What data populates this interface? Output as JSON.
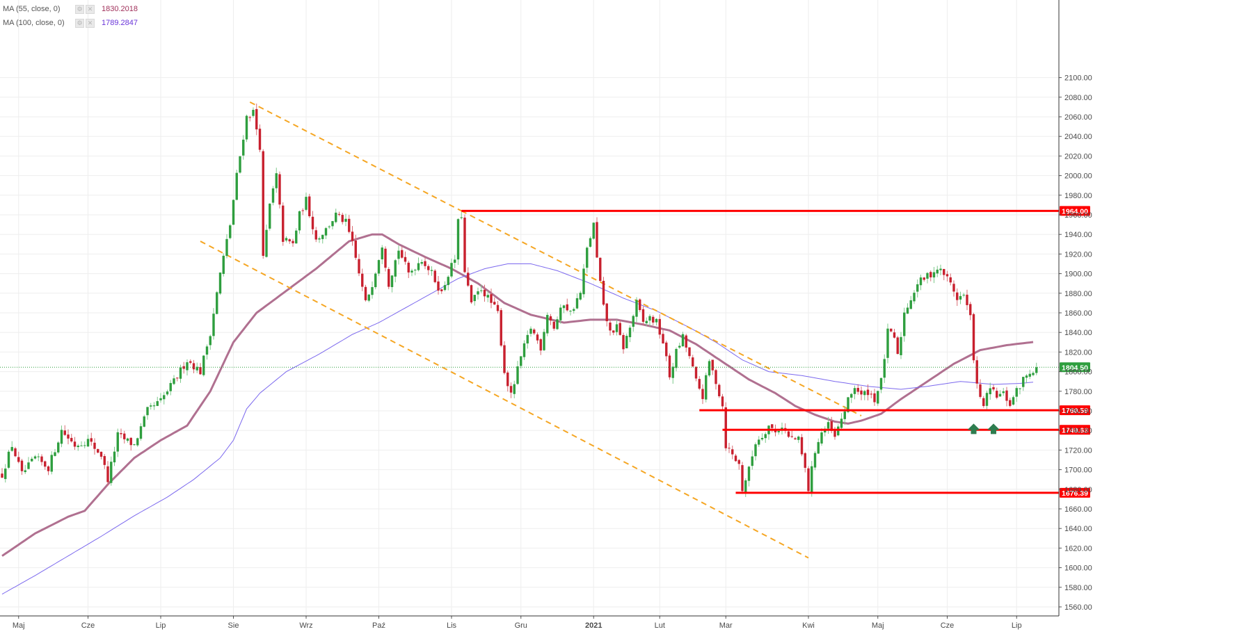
{
  "legend": [
    {
      "name": "MA (55, close, 0)",
      "value": "1830.2018",
      "color": "#b07090"
    },
    {
      "name": "MA (100, close, 0)",
      "value": "1789.2847",
      "color": "#7b68ee"
    }
  ],
  "colors": {
    "up_candle": "#2e9e3e",
    "down_candle": "#c8202e",
    "level_line": "#ff0000",
    "trend_line": "#f5a623",
    "ma55": "#b07090",
    "ma100": "#7b68ee",
    "last_price": "#2e9e3e",
    "arrow": "#2e7d4f",
    "grid": "#eeeeee"
  },
  "chart_data": {
    "type": "candlestick",
    "instrument_timeframe": "daily",
    "ylim": [
      1545,
      2090
    ],
    "y_ticks": [
      1560,
      1580,
      1600,
      1620,
      1640,
      1660,
      1680,
      1700,
      1720,
      1740,
      1760,
      1780,
      1800,
      1820,
      1840,
      1860,
      1880,
      1900,
      1920,
      1940,
      1960,
      1980,
      2000,
      2020,
      2040,
      2060,
      2080,
      2100
    ],
    "x_tick_labels": [
      {
        "label": "Maj",
        "bar": 5
      },
      {
        "label": "Cze",
        "bar": 26
      },
      {
        "label": "Lip",
        "bar": 48
      },
      {
        "label": "Sie",
        "bar": 70
      },
      {
        "label": "Wrz",
        "bar": 92
      },
      {
        "label": "Paź",
        "bar": 114
      },
      {
        "label": "Lis",
        "bar": 136
      },
      {
        "label": "Gru",
        "bar": 157
      },
      {
        "label": "2021",
        "bar": 179,
        "bold": true
      },
      {
        "label": "Lut",
        "bar": 199
      },
      {
        "label": "Mar",
        "bar": 219
      },
      {
        "label": "Kwi",
        "bar": 244
      },
      {
        "label": "Maj",
        "bar": 265
      },
      {
        "label": "Cze",
        "bar": 286
      },
      {
        "label": "Lip",
        "bar": 307
      }
    ],
    "price_keypoints": [
      [
        0,
        1695
      ],
      [
        3,
        1725
      ],
      [
        6,
        1695
      ],
      [
        10,
        1712
      ],
      [
        14,
        1702
      ],
      [
        18,
        1740
      ],
      [
        22,
        1725
      ],
      [
        26,
        1730
      ],
      [
        30,
        1715
      ],
      [
        32,
        1690
      ],
      [
        35,
        1735
      ],
      [
        40,
        1725
      ],
      [
        44,
        1760
      ],
      [
        48,
        1770
      ],
      [
        52,
        1790
      ],
      [
        56,
        1812
      ],
      [
        60,
        1800
      ],
      [
        63,
        1840
      ],
      [
        66,
        1900
      ],
      [
        69,
        1950
      ],
      [
        71,
        2000
      ],
      [
        74,
        2060
      ],
      [
        76,
        2065
      ],
      [
        78,
        2030
      ],
      [
        79,
        1915
      ],
      [
        81,
        1970
      ],
      [
        83,
        2000
      ],
      [
        85,
        1935
      ],
      [
        88,
        1930
      ],
      [
        90,
        1960
      ],
      [
        92,
        1975
      ],
      [
        95,
        1935
      ],
      [
        98,
        1945
      ],
      [
        101,
        1960
      ],
      [
        104,
        1952
      ],
      [
        106,
        1930
      ],
      [
        108,
        1900
      ],
      [
        110,
        1870
      ],
      [
        112,
        1890
      ],
      [
        115,
        1930
      ],
      [
        117,
        1890
      ],
      [
        120,
        1925
      ],
      [
        123,
        1900
      ],
      [
        127,
        1915
      ],
      [
        130,
        1900
      ],
      [
        133,
        1880
      ],
      [
        135,
        1900
      ],
      [
        137,
        1915
      ],
      [
        138,
        1952
      ],
      [
        139,
        1960
      ],
      [
        140,
        1900
      ],
      [
        142,
        1870
      ],
      [
        145,
        1885
      ],
      [
        148,
        1870
      ],
      [
        150,
        1860
      ],
      [
        152,
        1800
      ],
      [
        154,
        1775
      ],
      [
        157,
        1815
      ],
      [
        160,
        1845
      ],
      [
        163,
        1825
      ],
      [
        165,
        1860
      ],
      [
        167,
        1845
      ],
      [
        170,
        1870
      ],
      [
        172,
        1860
      ],
      [
        175,
        1880
      ],
      [
        177,
        1925
      ],
      [
        179,
        1950
      ],
      [
        180,
        1915
      ],
      [
        182,
        1865
      ],
      [
        184,
        1840
      ],
      [
        186,
        1845
      ],
      [
        188,
        1825
      ],
      [
        190,
        1845
      ],
      [
        192,
        1870
      ],
      [
        194,
        1850
      ],
      [
        196,
        1855
      ],
      [
        198,
        1850
      ],
      [
        200,
        1830
      ],
      [
        202,
        1795
      ],
      [
        204,
        1820
      ],
      [
        206,
        1835
      ],
      [
        208,
        1815
      ],
      [
        210,
        1790
      ],
      [
        212,
        1775
      ],
      [
        214,
        1810
      ],
      [
        216,
        1790
      ],
      [
        218,
        1765
      ],
      [
        219,
        1725
      ],
      [
        221,
        1715
      ],
      [
        223,
        1705
      ],
      [
        224,
        1680
      ],
      [
        226,
        1700
      ],
      [
        228,
        1728
      ],
      [
        230,
        1735
      ],
      [
        232,
        1745
      ],
      [
        234,
        1738
      ],
      [
        236,
        1745
      ],
      [
        238,
        1733
      ],
      [
        241,
        1730
      ],
      [
        243,
        1700
      ],
      [
        244,
        1680
      ],
      [
        246,
        1720
      ],
      [
        248,
        1738
      ],
      [
        250,
        1745
      ],
      [
        252,
        1732
      ],
      [
        254,
        1752
      ],
      [
        256,
        1770
      ],
      [
        258,
        1785
      ],
      [
        260,
        1775
      ],
      [
        262,
        1780
      ],
      [
        264,
        1772
      ],
      [
        266,
        1790
      ],
      [
        268,
        1840
      ],
      [
        270,
        1835
      ],
      [
        271,
        1815
      ],
      [
        273,
        1860
      ],
      [
        275,
        1875
      ],
      [
        277,
        1890
      ],
      [
        279,
        1895
      ],
      [
        281,
        1900
      ],
      [
        283,
        1905
      ],
      [
        285,
        1900
      ],
      [
        287,
        1890
      ],
      [
        289,
        1875
      ],
      [
        291,
        1878
      ],
      [
        293,
        1855
      ],
      [
        294,
        1815
      ],
      [
        295,
        1785
      ],
      [
        296,
        1772
      ],
      [
        297,
        1767
      ],
      [
        299,
        1782
      ],
      [
        301,
        1775
      ],
      [
        303,
        1777
      ],
      [
        305,
        1767
      ],
      [
        307,
        1780
      ],
      [
        309,
        1792
      ],
      [
        311,
        1800
      ],
      [
        313,
        1804.5
      ]
    ],
    "ma55_keypoints": [
      [
        0,
        1612
      ],
      [
        10,
        1635
      ],
      [
        20,
        1652
      ],
      [
        25,
        1658
      ],
      [
        32,
        1685
      ],
      [
        40,
        1712
      ],
      [
        48,
        1730
      ],
      [
        56,
        1745
      ],
      [
        63,
        1780
      ],
      [
        70,
        1830
      ],
      [
        77,
        1860
      ],
      [
        85,
        1880
      ],
      [
        95,
        1905
      ],
      [
        105,
        1933
      ],
      [
        112,
        1940
      ],
      [
        115,
        1940
      ],
      [
        120,
        1930
      ],
      [
        128,
        1917
      ],
      [
        136,
        1905
      ],
      [
        144,
        1890
      ],
      [
        152,
        1870
      ],
      [
        160,
        1858
      ],
      [
        170,
        1850
      ],
      [
        178,
        1853
      ],
      [
        186,
        1853
      ],
      [
        194,
        1848
      ],
      [
        202,
        1842
      ],
      [
        210,
        1828
      ],
      [
        218,
        1810
      ],
      [
        226,
        1792
      ],
      [
        234,
        1778
      ],
      [
        240,
        1765
      ],
      [
        246,
        1756
      ],
      [
        252,
        1749
      ],
      [
        256,
        1747
      ],
      [
        260,
        1750
      ],
      [
        266,
        1757
      ],
      [
        272,
        1772
      ],
      [
        280,
        1790
      ],
      [
        288,
        1808
      ],
      [
        296,
        1822
      ],
      [
        304,
        1827
      ],
      [
        312,
        1830.2
      ]
    ],
    "ma100_keypoints": [
      [
        0,
        1573
      ],
      [
        10,
        1592
      ],
      [
        20,
        1612
      ],
      [
        30,
        1632
      ],
      [
        40,
        1653
      ],
      [
        50,
        1672
      ],
      [
        58,
        1690
      ],
      [
        66,
        1712
      ],
      [
        70,
        1730
      ],
      [
        74,
        1762
      ],
      [
        78,
        1778
      ],
      [
        86,
        1800
      ],
      [
        96,
        1818
      ],
      [
        106,
        1838
      ],
      [
        114,
        1850
      ],
      [
        122,
        1865
      ],
      [
        130,
        1880
      ],
      [
        138,
        1895
      ],
      [
        146,
        1905
      ],
      [
        153,
        1910
      ],
      [
        160,
        1910
      ],
      [
        168,
        1903
      ],
      [
        178,
        1890
      ],
      [
        188,
        1875
      ],
      [
        198,
        1862
      ],
      [
        208,
        1845
      ],
      [
        216,
        1830
      ],
      [
        224,
        1812
      ],
      [
        232,
        1800
      ],
      [
        242,
        1796
      ],
      [
        252,
        1790
      ],
      [
        262,
        1785
      ],
      [
        272,
        1782
      ],
      [
        280,
        1785
      ],
      [
        290,
        1790
      ],
      [
        300,
        1787
      ],
      [
        308,
        1788
      ],
      [
        312,
        1789.3
      ]
    ],
    "horizontal_levels": [
      {
        "price": 1964.0,
        "label": "1964.00",
        "start_bar": 139
      },
      {
        "price": 1760.59,
        "label": "1760.59",
        "start_bar": 211
      },
      {
        "price": 1740.63,
        "label": "1740.63",
        "start_bar": 218
      },
      {
        "price": 1676.39,
        "label": "1676.39",
        "start_bar": 222
      }
    ],
    "trend_lines": [
      {
        "from": [
          75,
          2075
        ],
        "to": [
          139,
          1964
        ]
      },
      {
        "from": [
          60,
          1933
        ],
        "to": [
          244,
          1610
        ]
      },
      {
        "from": [
          139,
          1964
        ],
        "to": [
          260,
          1755
        ]
      }
    ],
    "last_price": {
      "value": 1804.5,
      "label": "1804.50"
    },
    "arrows": [
      {
        "bar": 294,
        "price": 1747
      },
      {
        "bar": 300,
        "price": 1747
      }
    ]
  }
}
